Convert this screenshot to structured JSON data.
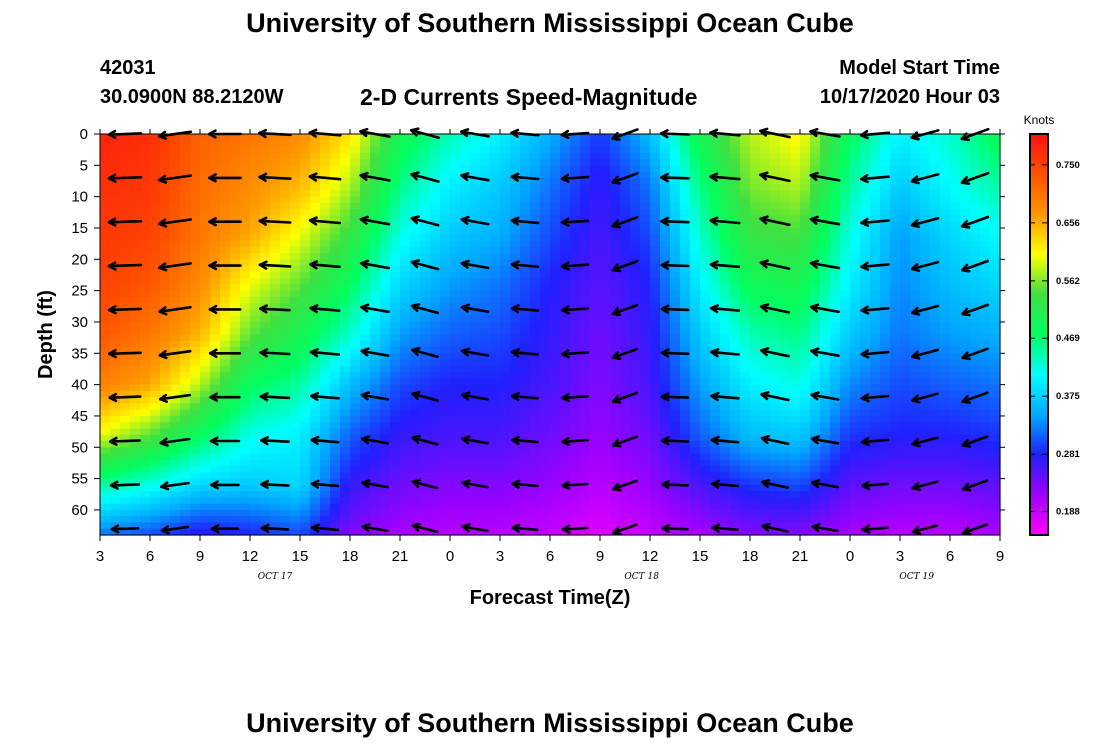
{
  "header": {
    "title": "University of Southern Mississippi Ocean Cube",
    "station_id": "42031",
    "station_location": "30.0900N 88.2120W",
    "plot_title": "2-D Currents Speed-Magnitude",
    "model_start_label": "Model Start Time",
    "model_start_value": "10/17/2020 Hour 03"
  },
  "footer": {
    "title": "University of Southern Mississippi Ocean Cube"
  },
  "chart_data": {
    "type": "heatmap",
    "title": "2-D Currents Speed-Magnitude",
    "xlabel": "Forecast Time(Z)",
    "ylabel": "Depth (ft)",
    "x_hours": [
      0,
      3,
      6,
      9,
      12,
      15,
      18,
      21,
      24,
      27,
      30,
      33,
      36,
      39,
      42,
      45,
      48,
      51,
      54
    ],
    "x_tick_labels": [
      "3",
      "6",
      "9",
      "12",
      "15",
      "18",
      "21",
      "0",
      "3",
      "6",
      "9",
      "12",
      "15",
      "18",
      "21",
      "0",
      "3",
      "6",
      "9"
    ],
    "date_labels": [
      {
        "label": "OCT 17",
        "hour": 10.5
      },
      {
        "label": "OCT 18",
        "hour": 32.5
      },
      {
        "label": "OCT 19",
        "hour": 49
      }
    ],
    "xlim": [
      0,
      54
    ],
    "y_ticks": [
      0,
      5,
      10,
      15,
      20,
      25,
      30,
      35,
      40,
      45,
      50,
      55,
      60
    ],
    "ylim": [
      0,
      64
    ],
    "colorbar": {
      "unit_label": "Knots",
      "tick_labels": [
        "0.750",
        "0.656",
        "0.562",
        "0.469",
        "0.375",
        "0.281",
        "0.188"
      ],
      "tick_values": [
        0.75,
        0.656,
        0.562,
        0.469,
        0.375,
        0.281,
        0.188
      ],
      "range": [
        0.15,
        0.8
      ],
      "colors": [
        "#ff00ff",
        "#a000ff",
        "#2020ff",
        "#00aaff",
        "#00ffff",
        "#00ff60",
        "#40e040",
        "#ffff00",
        "#ff9600",
        "#ff5000",
        "#ff1010"
      ]
    },
    "speed_profile_times": [
      0,
      3,
      6,
      9,
      12,
      15,
      18,
      21,
      24,
      27,
      30,
      33,
      36,
      39,
      42,
      45,
      48,
      51,
      54
    ],
    "speed_profile_depths": [
      0,
      8,
      16,
      24,
      32,
      40,
      48,
      56,
      64
    ],
    "speed_values": [
      [
        0.78,
        0.77,
        0.76,
        0.75,
        0.73,
        0.69,
        0.6,
        0.45,
        0.32
      ],
      [
        0.77,
        0.76,
        0.75,
        0.73,
        0.7,
        0.66,
        0.55,
        0.42,
        0.3
      ],
      [
        0.72,
        0.71,
        0.7,
        0.68,
        0.65,
        0.58,
        0.48,
        0.38,
        0.27
      ],
      [
        0.7,
        0.68,
        0.66,
        0.6,
        0.55,
        0.48,
        0.42,
        0.37,
        0.28
      ],
      [
        0.68,
        0.65,
        0.6,
        0.55,
        0.5,
        0.45,
        0.4,
        0.38,
        0.3
      ],
      [
        0.62,
        0.58,
        0.53,
        0.48,
        0.43,
        0.36,
        0.31,
        0.27,
        0.23
      ],
      [
        0.5,
        0.46,
        0.42,
        0.38,
        0.34,
        0.3,
        0.27,
        0.24,
        0.21
      ],
      [
        0.44,
        0.4,
        0.37,
        0.34,
        0.31,
        0.28,
        0.26,
        0.23,
        0.2
      ],
      [
        0.4,
        0.37,
        0.35,
        0.32,
        0.3,
        0.28,
        0.26,
        0.23,
        0.2
      ],
      [
        0.35,
        0.32,
        0.3,
        0.28,
        0.27,
        0.26,
        0.24,
        0.22,
        0.19
      ],
      [
        0.29,
        0.27,
        0.26,
        0.25,
        0.24,
        0.23,
        0.22,
        0.2,
        0.17
      ],
      [
        0.36,
        0.32,
        0.3,
        0.28,
        0.27,
        0.26,
        0.24,
        0.22,
        0.19
      ],
      [
        0.5,
        0.46,
        0.43,
        0.4,
        0.37,
        0.34,
        0.31,
        0.26,
        0.21
      ],
      [
        0.58,
        0.56,
        0.53,
        0.49,
        0.44,
        0.4,
        0.36,
        0.29,
        0.23
      ],
      [
        0.61,
        0.58,
        0.54,
        0.5,
        0.46,
        0.42,
        0.37,
        0.3,
        0.23
      ],
      [
        0.48,
        0.45,
        0.42,
        0.4,
        0.37,
        0.33,
        0.29,
        0.25,
        0.21
      ],
      [
        0.4,
        0.37,
        0.34,
        0.33,
        0.32,
        0.3,
        0.28,
        0.24,
        0.2
      ],
      [
        0.43,
        0.41,
        0.38,
        0.36,
        0.34,
        0.31,
        0.28,
        0.24,
        0.2
      ],
      [
        0.49,
        0.45,
        0.41,
        0.38,
        0.35,
        0.32,
        0.29,
        0.25,
        0.21
      ]
    ],
    "arrow_times": [
      1.5,
      4.5,
      7.5,
      10.5,
      13.5,
      16.5,
      19.5,
      22.5,
      25.5,
      28.5,
      31.5,
      34.5,
      37.5,
      40.5,
      43.5,
      46.5,
      49.5,
      52.5
    ],
    "arrow_depths": [
      0,
      7,
      14,
      21,
      28,
      35,
      42,
      49,
      56,
      63
    ],
    "arrow_directions_deg": [
      182,
      188,
      180,
      177,
      175,
      170,
      165,
      170,
      175,
      184,
      200,
      178,
      175,
      168,
      170,
      185,
      195,
      200
    ],
    "arrow_scale_speed": 0.75
  }
}
